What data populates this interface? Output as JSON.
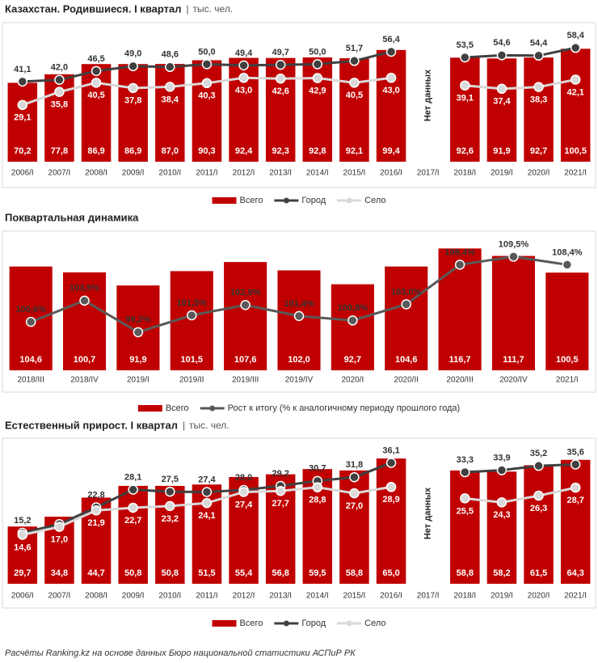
{
  "chart_data": [
    {
      "type": "bar_line",
      "title": "Казахстан. Родившиеся. I квартал",
      "subtitle": "тыс. чел.",
      "categories": [
        "2006/I",
        "2007/I",
        "2008/I",
        "2009/I",
        "2010/I",
        "2011/I",
        "2012/I",
        "2013/I",
        "2014/I",
        "2015/I",
        "2016/I",
        "2017/I",
        "2018/I",
        "2019/I",
        "2020/I",
        "2021/I"
      ],
      "annotation": "Нет данных",
      "ylim": [
        0,
        118
      ],
      "y2lim": [
        0,
        68
      ],
      "series": [
        {
          "name": "Всего",
          "type": "bar",
          "color": "#c00000",
          "values": [
            70.2,
            77.8,
            86.9,
            86.9,
            87.0,
            90.3,
            92.4,
            92.3,
            92.8,
            92.1,
            99.4,
            null,
            92.6,
            91.9,
            92.7,
            100.5
          ],
          "value_labels": [
            "70,2",
            "77,8",
            "86,9",
            "86,9",
            "87,0",
            "90,3",
            "92,4",
            "92,3",
            "92,8",
            "92,1",
            "99,4",
            null,
            "92,6",
            "91,9",
            "92,7",
            "100,5"
          ]
        },
        {
          "name": "Город",
          "type": "line",
          "axis": "y2",
          "color": "#404040",
          "values": [
            41.1,
            42.0,
            46.5,
            49.0,
            48.6,
            50.0,
            49.4,
            49.7,
            50.0,
            51.7,
            56.4,
            null,
            53.5,
            54.6,
            54.4,
            58.4
          ],
          "value_labels": [
            "41,1",
            "42,0",
            "46,5",
            "49,0",
            "48,6",
            "50,0",
            "49,4",
            "49,7",
            "50,0",
            "51,7",
            "56,4",
            null,
            "53,5",
            "54,6",
            "54,4",
            "58,4"
          ]
        },
        {
          "name": "Село",
          "type": "line",
          "axis": "y2",
          "color": "#d9d9d9",
          "values": [
            29.1,
            35.8,
            40.5,
            37.8,
            38.4,
            40.3,
            43.0,
            42.6,
            42.9,
            40.5,
            43.0,
            null,
            39.1,
            37.4,
            38.3,
            42.1
          ],
          "value_labels": [
            "29,1",
            "35,8",
            "40,5",
            "37,8",
            "38,4",
            "40,3",
            "43,0",
            "42,6",
            "42,9",
            "40,5",
            "43,0",
            null,
            "39,1",
            "37,4",
            "38,3",
            "42,1"
          ]
        }
      ]
    },
    {
      "type": "bar_line",
      "title": "Поквартальная динамика",
      "categories": [
        "2018/III",
        "2018/IV",
        "2019/I",
        "2019/II",
        "2019/III",
        "2019/IV",
        "2020/I",
        "2020/II",
        "2020/III",
        "2020/IV",
        "2021/I"
      ],
      "ylim": [
        35,
        125
      ],
      "y2lim": [
        94,
        112.3
      ],
      "series": [
        {
          "name": "Всего",
          "type": "bar",
          "color": "#c00000",
          "values": [
            104.6,
            100.7,
            91.9,
            101.5,
            107.6,
            102.0,
            92.7,
            104.6,
            116.7,
            111.7,
            100.5
          ],
          "value_labels": [
            "104,6",
            "100,7",
            "91,9",
            "101,5",
            "107,6",
            "102,0",
            "92,7",
            "104,6",
            "116,7",
            "111,7",
            "100,5"
          ]
        },
        {
          "name": "Рост к итогу (% к аналогичному периоду прошлого года)",
          "type": "line",
          "axis": "y2",
          "color": "#595959",
          "values": [
            100.6,
            103.5,
            99.2,
            101.5,
            102.9,
            101.4,
            100.8,
            103.0,
            108.4,
            109.5,
            108.4
          ],
          "value_labels": [
            "100,6%",
            "103,5%",
            "99,2%",
            "101,5%",
            "102,9%",
            "101,4%",
            "100,8%",
            "103,0%",
            "108,4%",
            "109,5%",
            "108,4%"
          ]
        }
      ]
    },
    {
      "type": "bar_line",
      "title": "Естественный прирост. I квартал",
      "subtitle": "тыс. чел.",
      "categories": [
        "2006/I",
        "2007/I",
        "2008/I",
        "2009/I",
        "2010/I",
        "2011/I",
        "2012/I",
        "2013/I",
        "2014/I",
        "2015/I",
        "2016/I",
        "2017/I",
        "2018/I",
        "2019/I",
        "2020/I",
        "2021/I"
      ],
      "annotation": "Нет данных",
      "ylim": [
        0,
        73
      ],
      "y2lim": [
        0,
        42
      ],
      "series": [
        {
          "name": "Всего",
          "type": "bar",
          "color": "#c00000",
          "values": [
            29.7,
            34.8,
            44.7,
            50.8,
            50.8,
            51.5,
            55.4,
            56.8,
            59.5,
            58.8,
            65.0,
            null,
            58.8,
            58.2,
            61.5,
            64.3
          ],
          "value_labels": [
            "29,7",
            "34,8",
            "44,7",
            "50,8",
            "50,8",
            "51,5",
            "55,4",
            "56,8",
            "59,5",
            "58,8",
            "65,0",
            null,
            "58,8",
            "58,2",
            "61,5",
            "64,3"
          ]
        },
        {
          "name": "Город",
          "type": "line",
          "axis": "y2",
          "color": "#404040",
          "values": [
            15.2,
            17.8,
            22.8,
            28.1,
            27.5,
            27.4,
            28.0,
            29.2,
            30.7,
            31.8,
            36.1,
            null,
            33.3,
            33.9,
            35.2,
            35.6
          ],
          "value_labels": [
            "15,2",
            null,
            "22,8",
            "28,1",
            "27,5",
            "27,4",
            "28,0",
            "29,2",
            "30,7",
            "31,8",
            "36,1",
            null,
            "33,3",
            "33,9",
            "35,2",
            "35,6"
          ]
        },
        {
          "name": "Село",
          "type": "line",
          "axis": "y2",
          "color": "#d9d9d9",
          "values": [
            14.6,
            17.0,
            21.9,
            22.7,
            23.2,
            24.1,
            27.4,
            27.7,
            28.8,
            27.0,
            28.9,
            null,
            25.5,
            24.3,
            26.3,
            28.7
          ],
          "value_labels": [
            "14,6",
            "17,0",
            "21,9",
            "22,7",
            "23,2",
            "24,1",
            "27,4",
            "27,7",
            "28,8",
            "27,0",
            "28,9",
            null,
            "25,5",
            "24,3",
            "26,3",
            "28,7"
          ]
        }
      ]
    }
  ],
  "source": "Расчёты Ranking.kz на основе данных Бюро национальной  статистики АСПиР РК"
}
